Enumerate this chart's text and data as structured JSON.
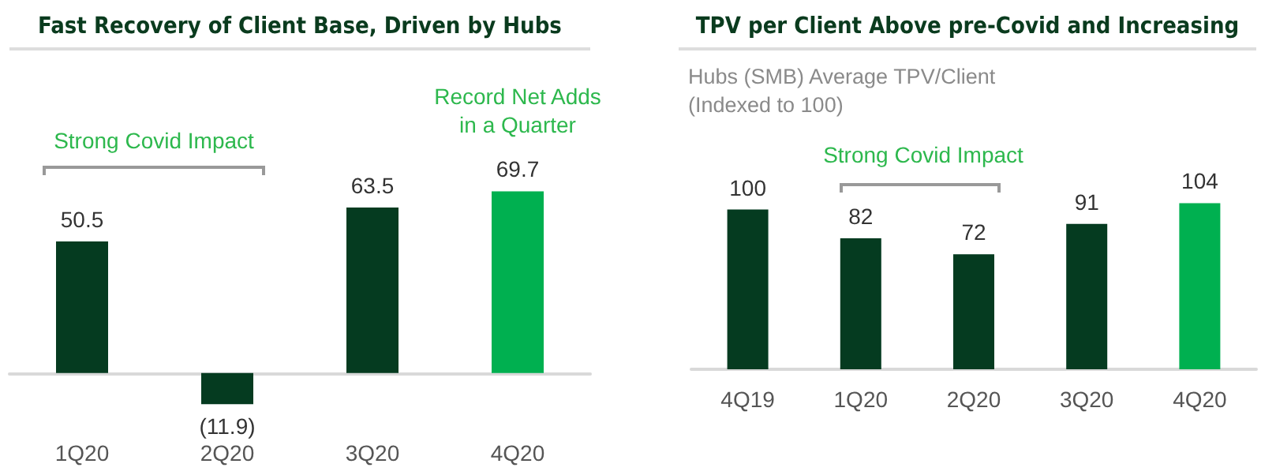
{
  "chart_data": [
    {
      "type": "bar",
      "title": "Fast Recovery of Client Base, Driven by Hubs",
      "categories": [
        "1Q20",
        "2Q20",
        "3Q20",
        "4Q20"
      ],
      "values": [
        50.5,
        -11.9,
        63.5,
        69.7
      ],
      "value_labels": [
        "50.5",
        "(11.9)",
        "63.5",
        "69.7"
      ],
      "colors": [
        "#053b20",
        "#053b20",
        "#053b20",
        "#00b050"
      ],
      "annotations": [
        "Strong Covid Impact",
        "Record Net Adds in a Quarter"
      ]
    },
    {
      "type": "bar",
      "title": "TPV per Client Above pre-Covid and Increasing",
      "subtitle": "Hubs (SMB) Average TPV/Client (Indexed to 100)",
      "categories": [
        "4Q19",
        "1Q20",
        "2Q20",
        "3Q20",
        "4Q20"
      ],
      "values": [
        100,
        82,
        72,
        91,
        104
      ],
      "data_labels": true,
      "colors": [
        "#053b20",
        "#053b20",
        "#053b20",
        "#053b20",
        "#00b050"
      ],
      "annotations": [
        "Strong Covid Impact"
      ]
    }
  ]
}
